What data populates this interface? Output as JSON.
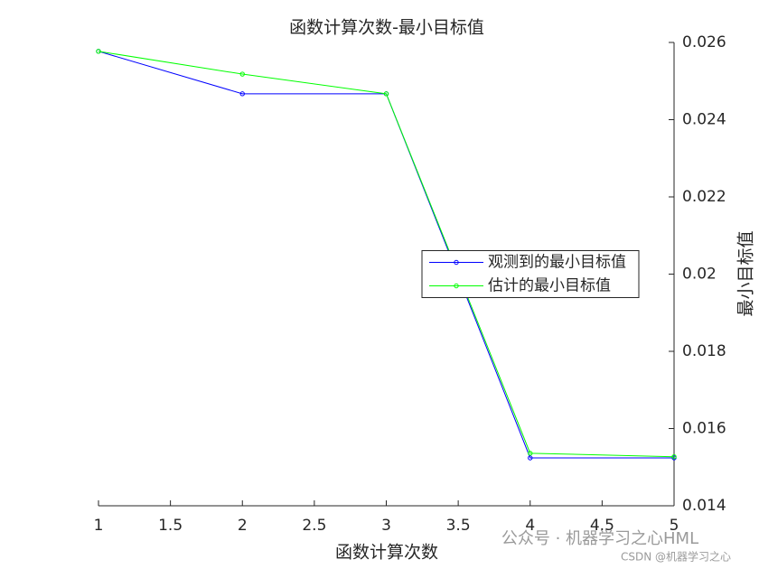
{
  "chart_data": {
    "type": "line",
    "title": "函数计算次数-最小目标值",
    "xlabel": "函数计算次数",
    "ylabel": "最小目标值",
    "x": [
      1,
      2,
      3,
      4,
      5
    ],
    "series": [
      {
        "name": "观测到的最小目标值",
        "color": "#0000ff",
        "values": [
          0.02577,
          0.02467,
          0.02467,
          0.01524,
          0.01524
        ]
      },
      {
        "name": "估计的最小目标值",
        "color": "#00ff00",
        "values": [
          0.02577,
          0.02518,
          0.02467,
          0.01536,
          0.01527
        ]
      }
    ],
    "xlim": [
      1,
      5
    ],
    "xticks": [
      1,
      1.5,
      2,
      2.5,
      3,
      3.5,
      4,
      4.5,
      5
    ],
    "ylim": [
      0.014,
      0.026
    ],
    "yticks": [
      0.014,
      0.016,
      0.018,
      0.02,
      0.022,
      0.024,
      0.026
    ],
    "y_axis_side": "right",
    "legend_position": "east",
    "watermark": "公众号 · 机器学习之心HML",
    "watermark_sub": "CSDN @机器学习之心"
  }
}
